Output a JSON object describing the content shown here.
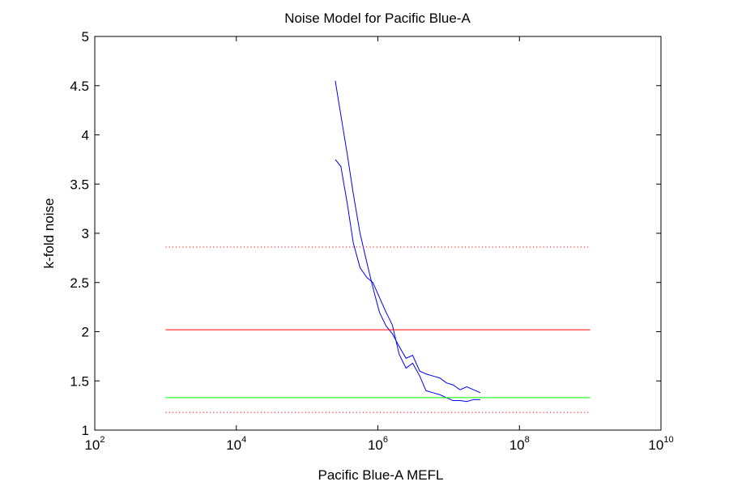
{
  "chart_data": {
    "type": "line",
    "title": "Noise Model for Pacific Blue-A",
    "xlabel": "Pacific Blue-A MEFL",
    "ylabel": "k-fold noise",
    "x_scale": "log",
    "xlim": [
      100,
      10000000000
    ],
    "ylim": [
      1,
      5
    ],
    "grid": false,
    "x_ticks": [
      {
        "value": 100,
        "base": "10",
        "exp": "2"
      },
      {
        "value": 10000,
        "base": "10",
        "exp": "4"
      },
      {
        "value": 1000000,
        "base": "10",
        "exp": "6"
      },
      {
        "value": 100000000,
        "base": "10",
        "exp": "8"
      },
      {
        "value": 10000000000,
        "base": "10",
        "exp": "10"
      }
    ],
    "y_ticks": [
      {
        "value": 1,
        "label": "1"
      },
      {
        "value": 1.5,
        "label": "1.5"
      },
      {
        "value": 2,
        "label": "2"
      },
      {
        "value": 2.5,
        "label": "2.5"
      },
      {
        "value": 3,
        "label": "3"
      },
      {
        "value": 3.5,
        "label": "3.5"
      },
      {
        "value": 4,
        "label": "4"
      },
      {
        "value": 4.5,
        "label": "4.5"
      },
      {
        "value": 5,
        "label": "5"
      }
    ],
    "series": [
      {
        "color": "#0000ff",
        "style": "solid",
        "x": [
          250000,
          300000,
          370000,
          450000,
          560000,
          700000,
          850000,
          1050000,
          1300000,
          1600000,
          2000000,
          2500000,
          3100000,
          3900000,
          4800000,
          6000000,
          7500000,
          9300000,
          11500000,
          14500000,
          18000000,
          22500000,
          28000000
        ],
        "y": [
          4.55,
          4.2,
          3.8,
          3.4,
          3.0,
          2.7,
          2.45,
          2.2,
          2.06,
          1.98,
          1.85,
          1.73,
          1.76,
          1.6,
          1.57,
          1.55,
          1.53,
          1.48,
          1.46,
          1.41,
          1.44,
          1.41,
          1.38
        ]
      },
      {
        "color": "#0000ff",
        "style": "solid",
        "x": [
          250000,
          300000,
          370000,
          450000,
          560000,
          700000,
          850000,
          1050000,
          1300000,
          1600000,
          2000000,
          2500000,
          3100000,
          3900000,
          4800000,
          6000000,
          7500000,
          9300000,
          11500000,
          14500000,
          18000000,
          22500000,
          28000000
        ],
        "y": [
          3.75,
          3.68,
          3.3,
          2.9,
          2.65,
          2.55,
          2.5,
          2.35,
          2.2,
          2.07,
          1.77,
          1.63,
          1.68,
          1.55,
          1.4,
          1.38,
          1.36,
          1.33,
          1.3,
          1.3,
          1.29,
          1.31,
          1.31
        ]
      },
      {
        "color": "#ff0000",
        "style": "solid",
        "x": [
          1000,
          1000000000
        ],
        "y": [
          2.02,
          2.02
        ]
      },
      {
        "color": "#00ff00",
        "style": "solid",
        "x": [
          1000,
          1000000000
        ],
        "y": [
          1.33,
          1.33
        ]
      },
      {
        "color": "#ff0000",
        "style": "dotted",
        "x": [
          1000,
          1000000000
        ],
        "y": [
          2.86,
          2.86
        ]
      },
      {
        "color": "#ff0000",
        "style": "dotted",
        "x": [
          1000,
          1000000000
        ],
        "y": [
          1.18,
          1.18
        ]
      }
    ]
  }
}
